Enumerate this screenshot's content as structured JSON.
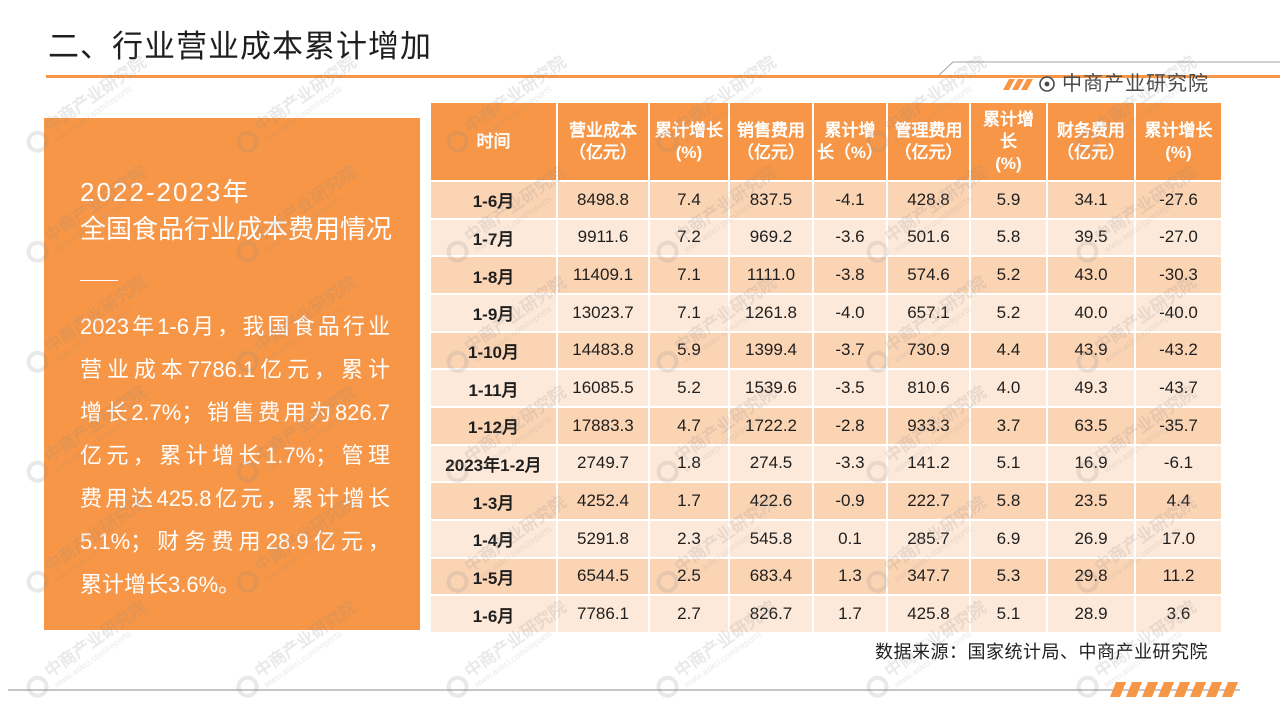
{
  "slide": {
    "title": "二、行业营业成本累计增加",
    "brand": "中商产业研究院",
    "brand_icon": "circle-dot-icon",
    "source": "数据来源：国家统计局、中商产业研究院"
  },
  "panel": {
    "year_range": "2022-2023年",
    "heading": "全国食品行业成本费用情况",
    "paragraph_lines": [
      "2023年1-6月，我国食品行业",
      "营业成本7786.1亿元，累计",
      "增长2.7%；销售费用为826.7",
      "亿元，累计增长1.7%；管理",
      "费用达425.8亿元，累计增长",
      "5.1%；财务费用28.9亿元，",
      "累计增长3.6%。"
    ]
  },
  "table": {
    "headers": [
      "时间",
      "营业成本\n（亿元）",
      "累计增长\n(%)",
      "销售费用\n（亿元）",
      "累计增\n长（%）",
      "管理费用\n（亿元）",
      "累计增\n长\n(%)",
      "财务费用\n（亿元）",
      "累计增长\n(%)"
    ],
    "rows": [
      [
        "1-6月",
        "8498.8",
        "7.4",
        "837.5",
        "-4.1",
        "428.8",
        "5.9",
        "34.1",
        "-27.6"
      ],
      [
        "1-7月",
        "9911.6",
        "7.2",
        "969.2",
        "-3.6",
        "501.6",
        "5.8",
        "39.5",
        "-27.0"
      ],
      [
        "1-8月",
        "11409.1",
        "7.1",
        "1111.0",
        "-3.8",
        "574.6",
        "5.2",
        "43.0",
        "-30.3"
      ],
      [
        "1-9月",
        "13023.7",
        "7.1",
        "1261.8",
        "-4.0",
        "657.1",
        "5.2",
        "40.0",
        "-40.0"
      ],
      [
        "1-10月",
        "14483.8",
        "5.9",
        "1399.4",
        "-3.7",
        "730.9",
        "4.4",
        "43.9",
        "-43.2"
      ],
      [
        "1-11月",
        "16085.5",
        "5.2",
        "1539.6",
        "-3.5",
        "810.6",
        "4.0",
        "49.3",
        "-43.7"
      ],
      [
        "1-12月",
        "17883.3",
        "4.7",
        "1722.2",
        "-2.8",
        "933.3",
        "3.7",
        "63.5",
        "-35.7"
      ],
      [
        "2023年1-2月",
        "2749.7",
        "1.8",
        "274.5",
        "-3.3",
        "141.2",
        "5.1",
        "16.9",
        "-6.1"
      ],
      [
        "1-3月",
        "4252.4",
        "1.7",
        "422.6",
        "-0.9",
        "222.7",
        "5.8",
        "23.5",
        "4.4"
      ],
      [
        "1-4月",
        "5291.8",
        "2.3",
        "545.8",
        "0.1",
        "285.7",
        "6.9",
        "26.9",
        "17.0"
      ],
      [
        "1-5月",
        "6544.5",
        "2.5",
        "683.4",
        "1.3",
        "347.7",
        "5.3",
        "29.8",
        "11.2"
      ],
      [
        "1-6月",
        "7786.1",
        "2.7",
        "826.7",
        "1.7",
        "425.8",
        "5.1",
        "28.9",
        "3.6"
      ]
    ]
  },
  "watermark": {
    "name": "中商产业研究院",
    "url": "www.askci.com/reports"
  },
  "colors": {
    "accent": "#F79646",
    "row_odd": "#FBD4B4",
    "row_even": "#FDE9D9",
    "text": "#1F1F1F"
  }
}
